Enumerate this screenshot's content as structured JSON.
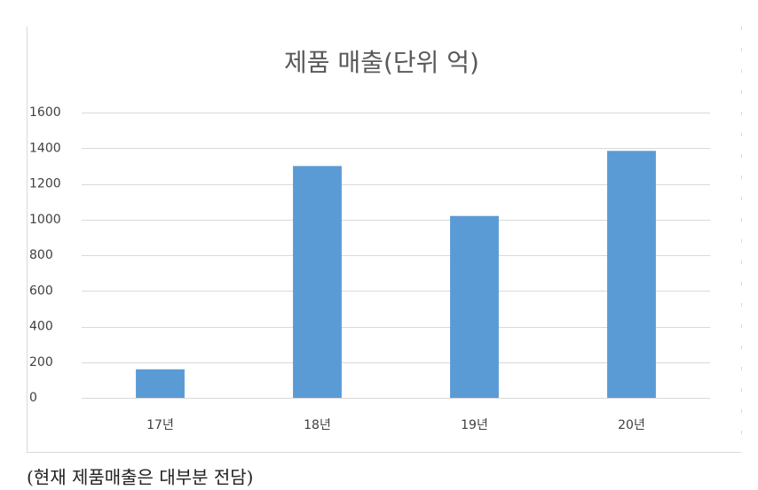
{
  "chart_data": {
    "type": "bar",
    "title": "제품 매출(단위 억)",
    "categories": [
      "17년",
      "18년",
      "19년",
      "20년"
    ],
    "values": [
      160,
      1300,
      1020,
      1385
    ],
    "color": "#5b9bd5",
    "ylim": [
      0,
      1600
    ],
    "yticks": [
      0,
      200,
      400,
      600,
      800,
      1000,
      1200,
      1400,
      1600
    ],
    "grid": true
  },
  "caption": "(현재 제품매출은 대부분 전담)"
}
